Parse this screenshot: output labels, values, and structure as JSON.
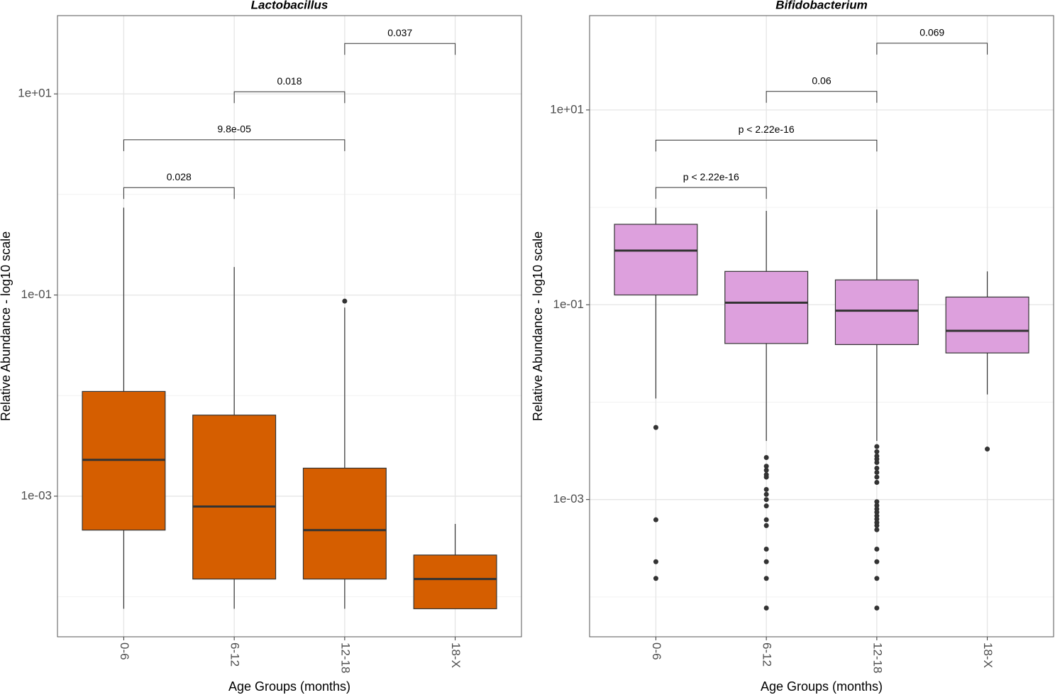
{
  "chart_data": [
    {
      "type": "box",
      "title": "Lactobacillus",
      "xlabel": "Age Groups (months)",
      "ylabel": "Relative Abundance - log10 scale",
      "color": "#d55e00",
      "log_scale": true,
      "grid": true,
      "categories": [
        "0-6",
        "6-12",
        "12-18",
        "18-X"
      ],
      "boxes": [
        {
          "whisker_low": 7.6e-05,
          "q1": 0.00046,
          "median": 0.0023,
          "q3": 0.011,
          "whisker_high": 0.74,
          "outliers": []
        },
        {
          "whisker_low": 7.6e-05,
          "q1": 0.00015,
          "median": 0.00079,
          "q3": 0.0064,
          "whisker_high": 0.19,
          "outliers": []
        },
        {
          "whisker_low": 7.6e-05,
          "q1": 0.00015,
          "median": 0.00046,
          "q3": 0.0019,
          "whisker_high": 0.075,
          "outliers": [
            0.087
          ]
        },
        {
          "whisker_low": 7.6e-05,
          "q1": 7.6e-05,
          "median": 0.00015,
          "q3": 0.00026,
          "whisker_high": 0.00053,
          "outliers": []
        }
      ],
      "ylim": [
        4e-05,
        60
      ],
      "yticks": [
        {
          "value": 10,
          "label": "1e+01"
        },
        {
          "value": 0.1,
          "label": "1e-01"
        },
        {
          "value": 0.001,
          "label": "1e-03"
        }
      ],
      "minor_yticks": [
        1,
        0.01,
        0.0001
      ],
      "brackets": [
        {
          "groups": [
            0,
            1
          ],
          "label": "0.028",
          "y": 1.17
        },
        {
          "groups": [
            0,
            2
          ],
          "label": "9.8e-05",
          "y": 3.5
        },
        {
          "groups": [
            1,
            2
          ],
          "label": "0.018",
          "y": 10.5
        },
        {
          "groups": [
            2,
            3
          ],
          "label": "0.037",
          "y": 31.7
        }
      ]
    },
    {
      "type": "box",
      "title": "Bifidobacterium",
      "xlabel": "Age Groups (months)",
      "ylabel": "Relative Abundance - log10 scale",
      "color": "#dda0dd",
      "log_scale": true,
      "grid": true,
      "categories": [
        "0-6",
        "6-12",
        "12-18",
        "18-X"
      ],
      "boxes": [
        {
          "whisker_low": 0.0109,
          "q1": 0.126,
          "median": 0.36,
          "q3": 0.67,
          "whisker_high": 0.99,
          "outliers": [
            0.0055,
            0.00062,
            0.00023,
            0.000155
          ]
        },
        {
          "whisker_low": 0.004,
          "q1": 0.04,
          "median": 0.105,
          "q3": 0.22,
          "whisker_high": 0.92,
          "outliers": [
            0.0027,
            0.0022,
            0.002,
            0.0018,
            0.0017,
            0.00127,
            0.00113,
            0.001,
            0.00086,
            0.00062,
            0.00054,
            0.00031,
            0.00023,
            0.000155,
            7.7e-05
          ]
        },
        {
          "whisker_low": 0.004,
          "q1": 0.039,
          "median": 0.087,
          "q3": 0.18,
          "whisker_high": 0.95,
          "outliers": [
            0.0035,
            0.0031,
            0.0028,
            0.0026,
            0.0024,
            0.0021,
            0.0019,
            0.0017,
            0.0015,
            0.00095,
            0.00087,
            0.0008,
            0.00074,
            0.00068,
            0.00063,
            0.00058,
            0.00054,
            0.00049,
            0.00031,
            0.00023,
            0.000155,
            7.7e-05
          ]
        },
        {
          "whisker_low": 0.012,
          "q1": 0.032,
          "median": 0.054,
          "q3": 0.12,
          "whisker_high": 0.22,
          "outliers": [
            0.0033
          ]
        }
      ],
      "ylim": [
        3.9e-05,
        93
      ],
      "yticks": [
        {
          "value": 10,
          "label": "1e+01"
        },
        {
          "value": 0.1,
          "label": "1e-01"
        },
        {
          "value": 0.001,
          "label": "1e-03"
        }
      ],
      "minor_yticks": [
        1,
        0.01,
        0.0001
      ],
      "brackets": [
        {
          "groups": [
            0,
            1
          ],
          "label": "p < 2.22e-16",
          "y": 1.6
        },
        {
          "groups": [
            0,
            2
          ],
          "label": "p < 2.22e-16",
          "y": 4.9
        },
        {
          "groups": [
            1,
            2
          ],
          "label": "0.06",
          "y": 15.5
        },
        {
          "groups": [
            2,
            3
          ],
          "label": "0.069",
          "y": 48.4
        }
      ]
    }
  ]
}
